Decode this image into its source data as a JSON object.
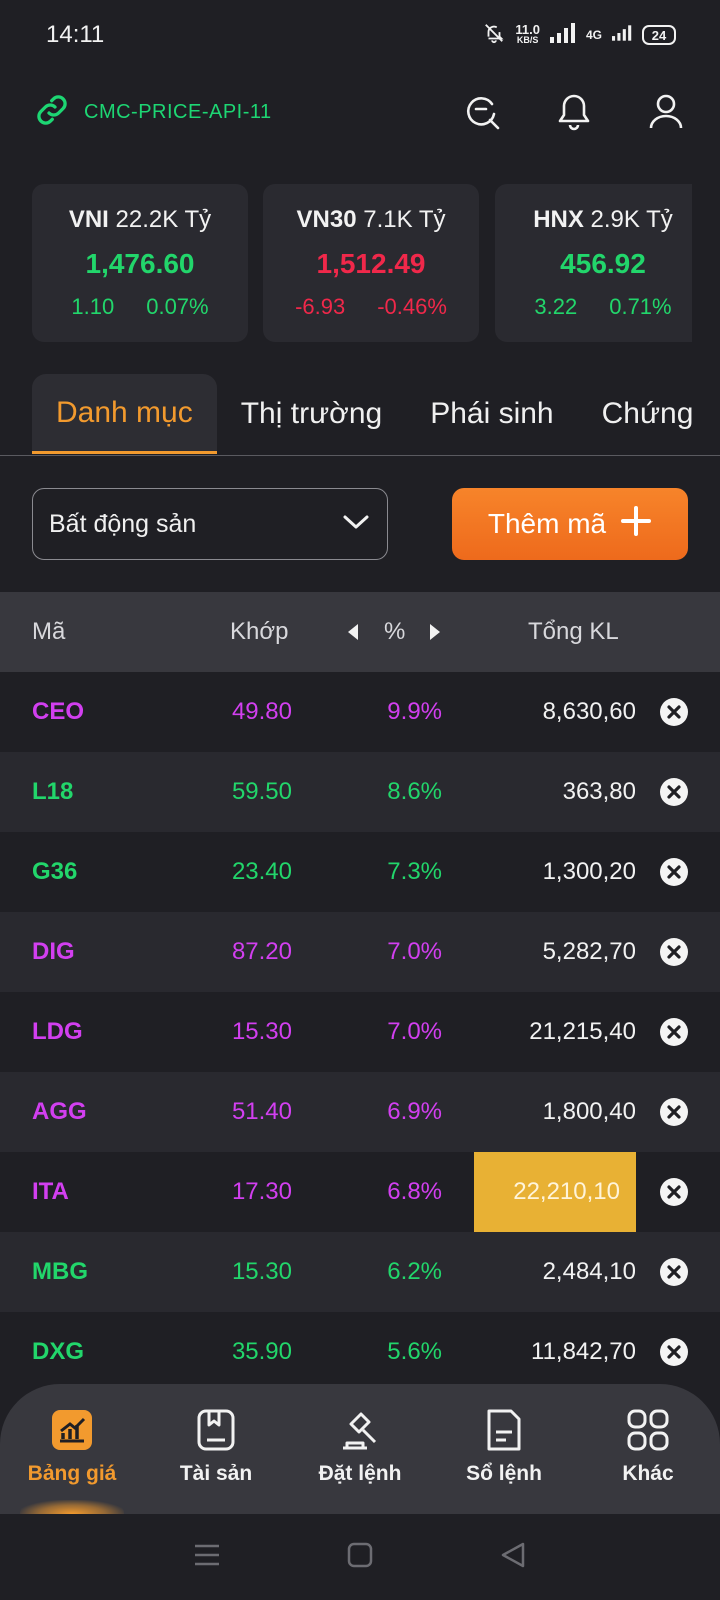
{
  "status_bar": {
    "time": "14:11",
    "net_speed_value": "11.0",
    "net_speed_unit": "KB/S",
    "network_type": "4G",
    "battery": "24"
  },
  "header": {
    "server_name": "CMC-PRICE-API-11"
  },
  "indices": [
    {
      "name": "VNI",
      "turnover": "22.2K Tỷ",
      "value": "1,476.60",
      "change": "1.10",
      "change_pct": "0.07%",
      "trend": "up"
    },
    {
      "name": "VN30",
      "turnover": "7.1K Tỷ",
      "value": "1,512.49",
      "change": "-6.93",
      "change_pct": "-0.46%",
      "trend": "down"
    },
    {
      "name": "HNX",
      "turnover": "2.9K Tỷ",
      "value": "456.92",
      "change": "3.22",
      "change_pct": "0.71%",
      "trend": "up"
    }
  ],
  "tabs": [
    {
      "label": "Danh mục",
      "active": true
    },
    {
      "label": "Thị trường",
      "active": false
    },
    {
      "label": "Phái sinh",
      "active": false
    },
    {
      "label": "Chứng",
      "active": false
    }
  ],
  "filter": {
    "selected": "Bất động sản",
    "add_label": "Thêm mã"
  },
  "table": {
    "headers": {
      "symbol": "Mã",
      "price": "Khớp",
      "pct": "%",
      "volume": "Tổng KL"
    },
    "rows": [
      {
        "symbol": "CEO",
        "price": "49.80",
        "pct": "9.9%",
        "volume": "8,630,60",
        "color": "purple"
      },
      {
        "symbol": "L18",
        "price": "59.50",
        "pct": "8.6%",
        "volume": "363,80",
        "color": "green"
      },
      {
        "symbol": "G36",
        "price": "23.40",
        "pct": "7.3%",
        "volume": "1,300,20",
        "color": "green"
      },
      {
        "symbol": "DIG",
        "price": "87.20",
        "pct": "7.0%",
        "volume": "5,282,70",
        "color": "purple"
      },
      {
        "symbol": "LDG",
        "price": "15.30",
        "pct": "7.0%",
        "volume": "21,215,40",
        "color": "purple"
      },
      {
        "symbol": "AGG",
        "price": "51.40",
        "pct": "6.9%",
        "volume": "1,800,40",
        "color": "purple"
      },
      {
        "symbol": "ITA",
        "price": "17.30",
        "pct": "6.8%",
        "volume": "22,210,10",
        "color": "purple",
        "highlight": true
      },
      {
        "symbol": "MBG",
        "price": "15.30",
        "pct": "6.2%",
        "volume": "2,484,10",
        "color": "green"
      },
      {
        "symbol": "DXG",
        "price": "35.90",
        "pct": "5.6%",
        "volume": "11,842,70",
        "color": "green"
      }
    ]
  },
  "bottom_nav": [
    {
      "label": "Bảng giá",
      "icon": "chart-icon",
      "active": true
    },
    {
      "label": "Tài sản",
      "icon": "wallet-icon",
      "active": false
    },
    {
      "label": "Đặt lệnh",
      "icon": "gavel-icon",
      "active": false
    },
    {
      "label": "Sổ lệnh",
      "icon": "document-icon",
      "active": false
    },
    {
      "label": "Khác",
      "icon": "grid-icon",
      "active": false
    }
  ],
  "colors": {
    "accent": "#f29a2e",
    "up": "#22d66b",
    "down": "#f0284a",
    "ceiling": "#d23ff0",
    "highlight": "#e8b134"
  }
}
